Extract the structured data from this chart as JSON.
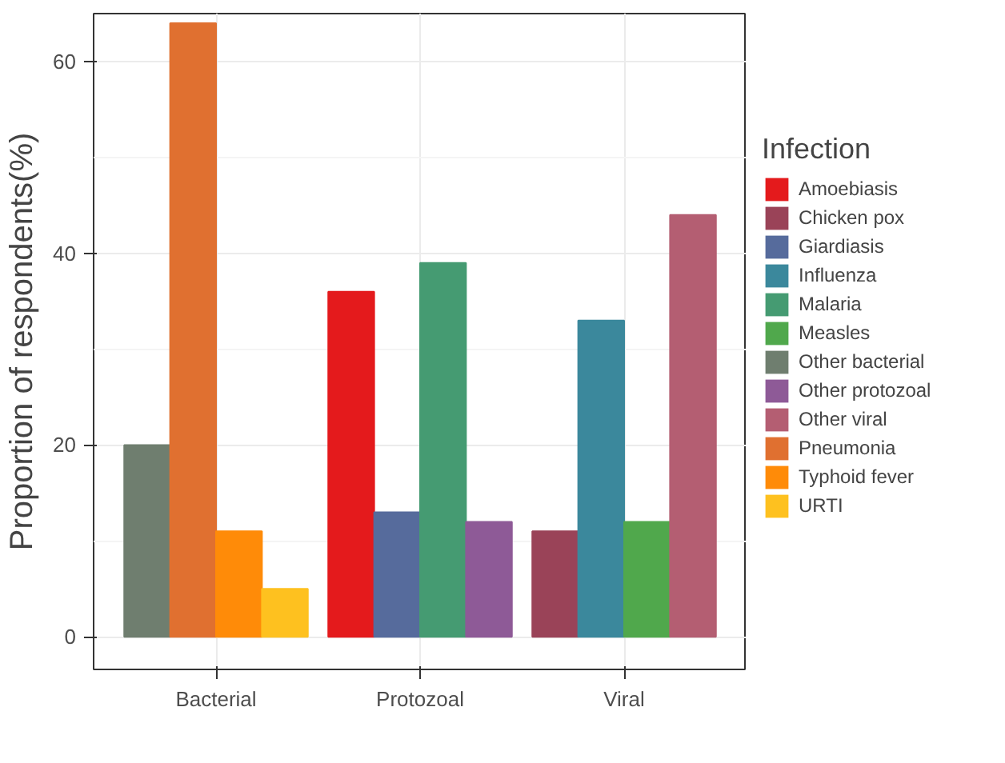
{
  "chart_data": {
    "type": "bar",
    "ylabel": "Proportion of respondents(%)",
    "legend_title": "Infection",
    "categories": [
      "Bacterial",
      "Protozoal",
      "Viral"
    ],
    "series": [
      {
        "name": "Amoebiasis",
        "color": "#e41a1c",
        "values": [
          null,
          36,
          null
        ]
      },
      {
        "name": "Chicken pox",
        "color": "#9a4358",
        "values": [
          null,
          null,
          11
        ]
      },
      {
        "name": "Giardiasis",
        "color": "#566b9c",
        "values": [
          null,
          13,
          null
        ]
      },
      {
        "name": "Influenza",
        "color": "#3b889c",
        "values": [
          null,
          null,
          33
        ]
      },
      {
        "name": "Malaria",
        "color": "#459b72",
        "values": [
          null,
          39,
          null
        ]
      },
      {
        "name": "Measles",
        "color": "#50a84c",
        "values": [
          null,
          null,
          12
        ]
      },
      {
        "name": "Other bacterial",
        "color": "#6f7e6f",
        "values": [
          20,
          null,
          null
        ]
      },
      {
        "name": "Other protozoal",
        "color": "#8e5a97",
        "values": [
          null,
          12,
          null
        ]
      },
      {
        "name": "Other viral",
        "color": "#b45e72",
        "values": [
          null,
          null,
          44
        ]
      },
      {
        "name": "Pneumonia",
        "color": "#e07030",
        "values": [
          64,
          null,
          null
        ]
      },
      {
        "name": "Typhoid fever",
        "color": "#ff8b08",
        "values": [
          11,
          null,
          null
        ]
      },
      {
        "name": "URTI",
        "color": "#fec11f",
        "values": [
          5,
          null,
          null
        ]
      }
    ],
    "ylim": [
      -3.4,
      65
    ],
    "yticks": [
      0,
      20,
      40,
      60
    ],
    "grid": true,
    "legend": "right"
  }
}
